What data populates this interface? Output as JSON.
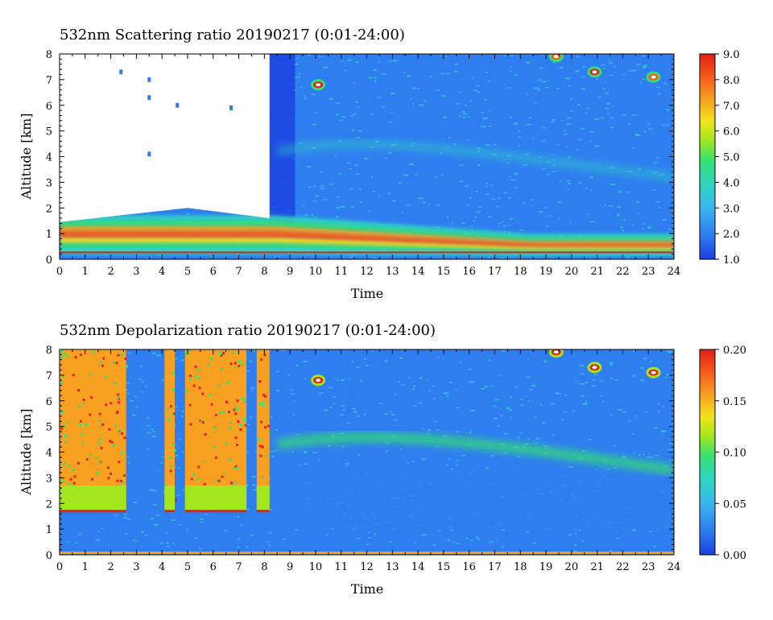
{
  "chart_data": [
    {
      "type": "heatmap",
      "title": "532nm Scattering ratio  20190217 (0:01-24:00)",
      "xlabel": "Time",
      "ylabel": "Altitude [km]",
      "xlim": [
        0,
        24
      ],
      "ylim": [
        0,
        8
      ],
      "x_ticks": [
        "0",
        "1",
        "2",
        "3",
        "4",
        "5",
        "6",
        "7",
        "8",
        "9",
        "10",
        "11",
        "12",
        "13",
        "14",
        "15",
        "16",
        "17",
        "18",
        "19",
        "20",
        "21",
        "22",
        "23",
        "24"
      ],
      "y_ticks": [
        "0",
        "1",
        "2",
        "3",
        "4",
        "5",
        "6",
        "7",
        "8"
      ],
      "colorbar": {
        "min": 1.0,
        "max": 9.0,
        "ticks": [
          "1.0",
          "2.0",
          "3.0",
          "4.0",
          "5.0",
          "6.0",
          "7.0",
          "8.0",
          "9.0"
        ]
      },
      "colormap": [
        "#1a3fe0",
        "#2f7ef0",
        "#3bb6f0",
        "#2fd6c0",
        "#36e070",
        "#a4e61e",
        "#f0e41a",
        "#f8a020",
        "#f45a1a",
        "#e0201a"
      ],
      "features": {
        "no_data_region": {
          "time": [
            0,
            8.2
          ],
          "altitude_above_km": [
            1.3,
            2.0
          ]
        },
        "low_aerosol_layer": {
          "time": [
            0,
            24
          ],
          "altitude_km": [
            0.6,
            1.6
          ],
          "value_range": [
            4.0,
            9.0
          ]
        },
        "background_value": 2.0,
        "cloud_patches": [
          {
            "time": 10.1,
            "altitude_km": 6.8,
            "value": 8.5
          },
          {
            "time": 19.4,
            "altitude_km": 7.9,
            "value": 8.0
          },
          {
            "time": 20.9,
            "altitude_km": 7.3,
            "value": 8.5
          },
          {
            "time": 23.2,
            "altitude_km": 7.1,
            "value": 8.0
          }
        ]
      }
    },
    {
      "type": "heatmap",
      "title": "532nm Depolarization ratio  20190217 (0:01-24:00)",
      "xlabel": "Time",
      "ylabel": "Altitude [km]",
      "xlim": [
        0,
        24
      ],
      "ylim": [
        0,
        8
      ],
      "x_ticks": [
        "0",
        "1",
        "2",
        "3",
        "4",
        "5",
        "6",
        "7",
        "8",
        "9",
        "10",
        "11",
        "12",
        "13",
        "14",
        "15",
        "16",
        "17",
        "18",
        "19",
        "20",
        "21",
        "22",
        "23",
        "24"
      ],
      "y_ticks": [
        "0",
        "1",
        "2",
        "3",
        "4",
        "5",
        "6",
        "7",
        "8"
      ],
      "colorbar": {
        "min": 0.0,
        "max": 0.2,
        "ticks": [
          "0.00",
          "0.05",
          "0.10",
          "0.15",
          "0.20"
        ]
      },
      "colormap": [
        "#1a3fe0",
        "#2f7ef0",
        "#3bb6f0",
        "#2fd6c0",
        "#36e070",
        "#a4e61e",
        "#f0e41a",
        "#f8a020",
        "#f45a1a",
        "#e0201a"
      ],
      "features": {
        "high_depol_columns": [
          {
            "time": [
              0,
              2.6
            ],
            "altitude_km": [
              1.8,
              8
            ],
            "value": 0.18
          },
          {
            "time": [
              4.1,
              4.5
            ],
            "altitude_km": [
              1.8,
              8
            ],
            "value": 0.18
          },
          {
            "time": [
              4.9,
              7.3
            ],
            "altitude_km": [
              1.8,
              8
            ],
            "value": 0.18
          },
          {
            "time": [
              7.7,
              8.2
            ],
            "altitude_km": [
              1.8,
              8
            ],
            "value": 0.16
          }
        ],
        "elevated_layer": {
          "time": [
            8.5,
            24
          ],
          "altitude_km": [
            3.8,
            5.0
          ],
          "value": 0.09
        },
        "background_value": 0.03,
        "cloud_patches": [
          {
            "time": 10.1,
            "altitude_km": 6.8,
            "value": 0.18
          },
          {
            "time": 19.4,
            "altitude_km": 7.9,
            "value": 0.19
          },
          {
            "time": 20.9,
            "altitude_km": 7.3,
            "value": 0.19
          },
          {
            "time": 23.2,
            "altitude_km": 7.1,
            "value": 0.18
          }
        ]
      }
    }
  ]
}
